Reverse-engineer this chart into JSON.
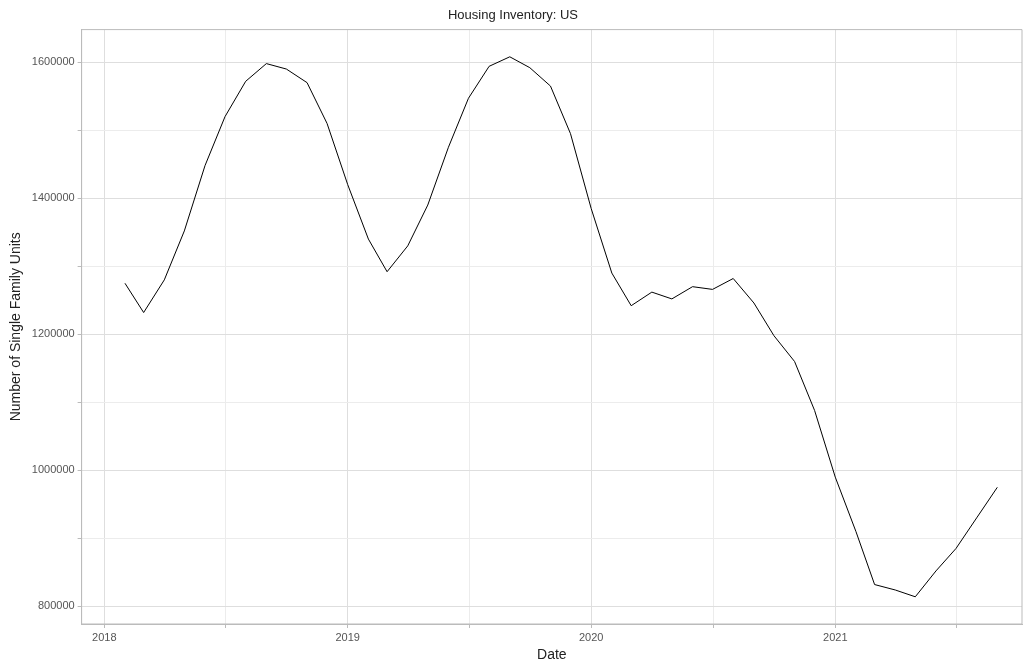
{
  "chart_data": {
    "type": "line",
    "title": "Housing Inventory: US",
    "xlabel": "Date",
    "ylabel": "Number of Single Family Units",
    "x": [
      "2018-02-01",
      "2018-03-01",
      "2018-04-01",
      "2018-05-01",
      "2018-06-01",
      "2018-07-01",
      "2018-08-01",
      "2018-09-01",
      "2018-10-01",
      "2018-11-01",
      "2018-12-01",
      "2019-01-01",
      "2019-02-01",
      "2019-03-01",
      "2019-04-01",
      "2019-05-01",
      "2019-06-01",
      "2019-07-01",
      "2019-08-01",
      "2019-09-01",
      "2019-10-01",
      "2019-11-01",
      "2019-12-01",
      "2020-01-01",
      "2020-02-01",
      "2020-03-01",
      "2020-04-01",
      "2020-05-01",
      "2020-06-01",
      "2020-07-01",
      "2020-08-01",
      "2020-09-01",
      "2020-10-01",
      "2020-11-01",
      "2020-12-01",
      "2021-01-01",
      "2021-02-01",
      "2021-03-01",
      "2021-04-01",
      "2021-05-01",
      "2021-06-01",
      "2021-07-01",
      "2021-08-01",
      "2021-09-01"
    ],
    "series": [
      {
        "color": "#000000",
        "values": [
          1275000,
          1232000,
          1280000,
          1352000,
          1448000,
          1520000,
          1572000,
          1598000,
          1590000,
          1570000,
          1510000,
          1420000,
          1340000,
          1292000,
          1330000,
          1390000,
          1475000,
          1547000,
          1594000,
          1608000,
          1592000,
          1565000,
          1495000,
          1385000,
          1290000,
          1242000,
          1262000,
          1252000,
          1270000,
          1266000,
          1282000,
          1246000,
          1198000,
          1160000,
          1088000,
          990000,
          910000,
          832000,
          824000,
          814000,
          852000,
          885000,
          930000,
          975000
        ]
      }
    ],
    "xlim": [
      "2017-11-28",
      "2021-10-08"
    ],
    "xticks": [
      {
        "value": "2018-01-01",
        "label": "2018"
      },
      {
        "value": "2018-07-02",
        "label": null
      },
      {
        "value": "2019-01-01",
        "label": "2019"
      },
      {
        "value": "2019-07-02",
        "label": null
      },
      {
        "value": "2020-01-01",
        "label": "2020"
      },
      {
        "value": "2020-07-02",
        "label": null
      },
      {
        "value": "2021-01-01",
        "label": "2021"
      },
      {
        "value": "2021-07-02",
        "label": null
      }
    ],
    "ylim": [
      774000,
      1648000
    ],
    "yticks": [
      800000,
      {
        "value": 900000,
        "label": null
      },
      1000000,
      {
        "value": 1100000,
        "label": null
      },
      1200000,
      {
        "value": 1300000,
        "label": null
      },
      1400000,
      {
        "value": 1500000,
        "label": null
      },
      1600000
    ],
    "grid": true,
    "marker": "none",
    "line_style": "solid"
  }
}
